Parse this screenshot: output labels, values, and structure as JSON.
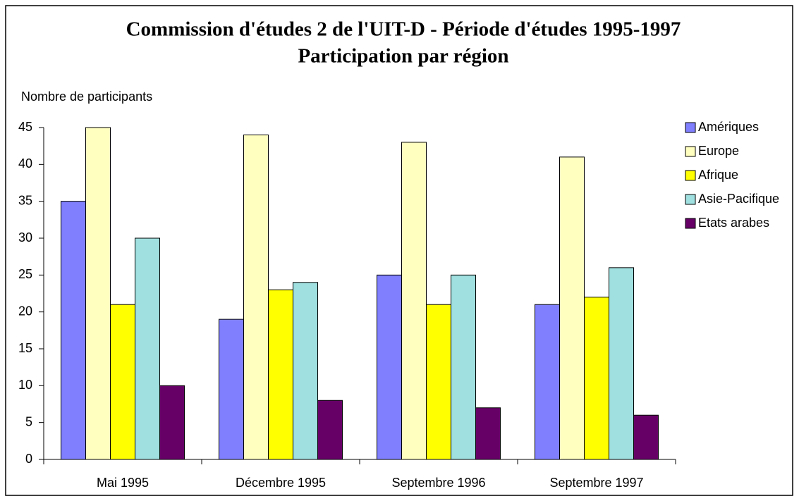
{
  "chart_data": {
    "type": "bar",
    "title": "Commission d'études 2 de l'UIT-D - Période d'études 1995-1997",
    "subtitle": "Participation par région",
    "y_label": "Nombre de participants",
    "categories": [
      "Mai 1995",
      "Décembre 1995",
      "Septembre 1996",
      "Septembre 1997"
    ],
    "series": [
      {
        "name": "Amériques",
        "color": "#8080ff",
        "values": [
          35,
          19,
          25,
          21
        ]
      },
      {
        "name": "Europe",
        "color": "#ffffc0",
        "values": [
          45,
          44,
          43,
          41
        ]
      },
      {
        "name": "Afrique",
        "color": "#ffff00",
        "values": [
          21,
          23,
          21,
          22
        ]
      },
      {
        "name": "Asie-Pacifique",
        "color": "#a0e0e0",
        "values": [
          30,
          24,
          25,
          26
        ]
      },
      {
        "name": "Etats arabes",
        "color": "#660066",
        "values": [
          10,
          8,
          7,
          6
        ]
      }
    ],
    "ylim": [
      0,
      45
    ],
    "yticks": [
      0,
      5,
      10,
      15,
      20,
      25,
      30,
      35,
      40,
      45
    ],
    "grid": false,
    "legend": "right"
  }
}
